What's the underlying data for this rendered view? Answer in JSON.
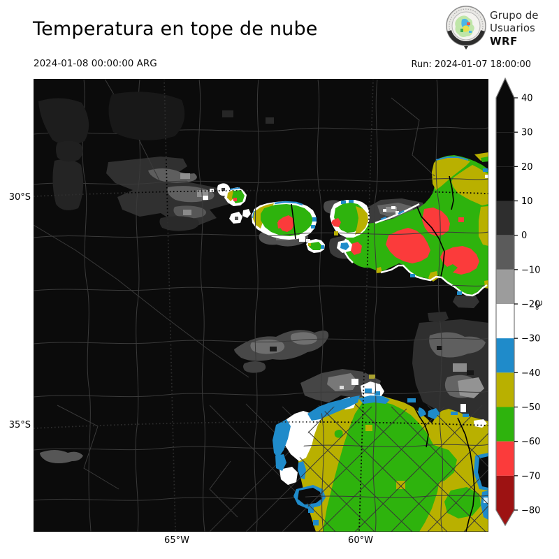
{
  "header": {
    "title": "Temperatura en tope de nube",
    "valid_time": "2024-01-08 00:00:00 ARG",
    "run_label": "Run: 2024-01-07 18:00:00"
  },
  "logo": {
    "line1": "Grupo de",
    "line2": "Usuarios",
    "line3": "WRF"
  },
  "axes": {
    "lat": [
      "30°S",
      "35°S"
    ],
    "lon": [
      "65°W",
      "60°W"
    ]
  },
  "colorbar": {
    "unit": "°C",
    "tick_values": [
      40,
      30,
      20,
      10,
      0,
      -10,
      -20,
      -30,
      -40,
      -50,
      -60,
      -70,
      -80
    ],
    "tick_labels": [
      "40",
      "30",
      "20",
      "10",
      "0",
      "−10",
      "−20",
      "−30",
      "−40",
      "−50",
      "−60",
      "−70",
      "−80"
    ],
    "segments": [
      {
        "from": 40,
        "to": 30,
        "color": "#0a0a0a"
      },
      {
        "from": 30,
        "to": 20,
        "color": "#0a0a0a"
      },
      {
        "from": 20,
        "to": 10,
        "color": "#0a0a0a"
      },
      {
        "from": 10,
        "to": 0,
        "color": "#2e2e2e"
      },
      {
        "from": 0,
        "to": -10,
        "color": "#5b5b5b"
      },
      {
        "from": -10,
        "to": -20,
        "color": "#9c9c9c"
      },
      {
        "from": -20,
        "to": -30,
        "color": "#ffffff"
      },
      {
        "from": -30,
        "to": -40,
        "color": "#1f8bca"
      },
      {
        "from": -40,
        "to": -50,
        "color": "#b9b000"
      },
      {
        "from": -50,
        "to": -60,
        "color": "#2eb30d"
      },
      {
        "from": -60,
        "to": -70,
        "color": "#fb3b3b"
      },
      {
        "from": -70,
        "to": -80,
        "color": "#9d1212"
      }
    ],
    "over_arrow_color": "#0a0a0a",
    "under_arrow_color": "#9d1212",
    "outline_color": "#777777"
  },
  "map_colors": {
    "background": "#0b0b0b",
    "boundaries": "#3a3a3a",
    "cold_cloud_green": "#2eb30d",
    "cloud_yellow": "#b9b000",
    "cloud_blue": "#1f8bca",
    "cloud_red": "#fb3b3b",
    "cloud_white": "#ffffff"
  }
}
